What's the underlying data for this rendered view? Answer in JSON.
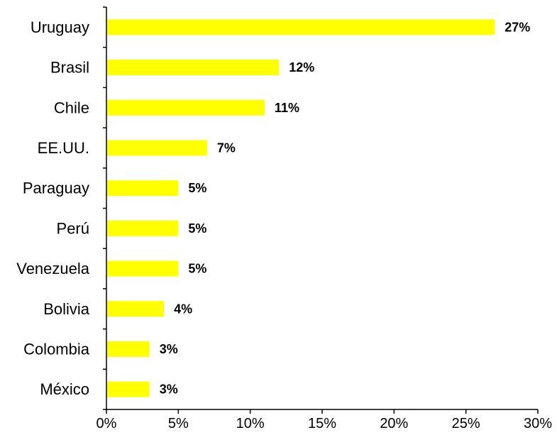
{
  "chart_data": {
    "type": "bar",
    "orientation": "horizontal",
    "categories": [
      "Uruguay",
      "Brasil",
      "Chile",
      "EE.UU.",
      "Paraguay",
      "Perú",
      "Venezuela",
      "Bolivia",
      "Colombia",
      "México"
    ],
    "values": [
      27,
      12,
      11,
      7,
      5,
      5,
      5,
      4,
      3,
      3
    ],
    "data_labels": [
      "27%",
      "12%",
      "11%",
      "7%",
      "5%",
      "5%",
      "5%",
      "4%",
      "3%",
      "3%"
    ],
    "xlim": [
      0,
      30
    ],
    "x_ticks": [
      0,
      5,
      10,
      15,
      20,
      25,
      30
    ],
    "x_tick_labels": [
      "0%",
      "5%",
      "10%",
      "15%",
      "20%",
      "25%",
      "30%"
    ],
    "title": "",
    "xlabel": "",
    "ylabel": "",
    "grid": false,
    "legend": "none",
    "colors": {
      "bar": "#FFFF00",
      "axis": "#000000",
      "text": "#000000"
    }
  }
}
